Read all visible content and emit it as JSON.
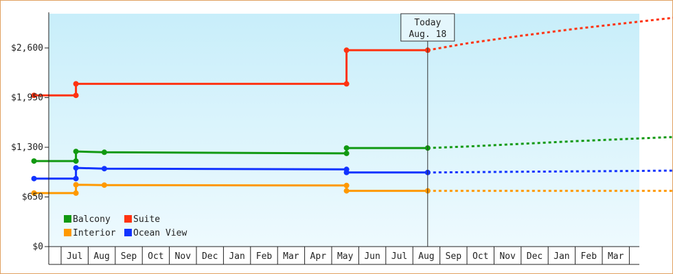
{
  "chart_data": {
    "type": "line",
    "title": "",
    "xlabel": "",
    "ylabel": "",
    "ylim": [
      0,
      3050
    ],
    "yticks": [
      0,
      650,
      1300,
      1950,
      2600
    ],
    "ytick_labels": [
      "$0",
      "$650",
      "$1,300",
      "$1,950",
      "$2,600"
    ],
    "month_labels": [
      "Jul",
      "Aug",
      "Sep",
      "Oct",
      "Nov",
      "Dec",
      "Jan",
      "Feb",
      "Mar",
      "Apr",
      "May",
      "Jun",
      "Jul",
      "Aug",
      "Sep",
      "Oct",
      "Nov",
      "Dec",
      "Jan",
      "Feb",
      "Mar"
    ],
    "x_unit": "months since start of Jun (first year)",
    "today_x": 14.55,
    "today_label": [
      "Today",
      "Aug. 18"
    ],
    "grid": false,
    "legend_position": "bottom-left",
    "series": [
      {
        "name": "Balcony",
        "color": "#119911",
        "points": [
          [
            0.0,
            1120
          ],
          [
            1.55,
            1120
          ],
          [
            1.55,
            1245
          ],
          [
            2.6,
            1235
          ],
          [
            11.55,
            1220
          ],
          [
            11.55,
            1290
          ],
          [
            14.55,
            1290
          ]
        ],
        "projection": [
          [
            14.55,
            1290
          ],
          [
            16.0,
            1310
          ],
          [
            18.0,
            1345
          ],
          [
            20.0,
            1380
          ],
          [
            22.0,
            1410
          ],
          [
            24.0,
            1440
          ],
          [
            25.3,
            1460
          ]
        ]
      },
      {
        "name": "Suite",
        "color": "#ff3311",
        "points": [
          [
            0.0,
            1980
          ],
          [
            1.55,
            1980
          ],
          [
            1.55,
            2130
          ],
          [
            11.55,
            2130
          ],
          [
            11.55,
            2570
          ],
          [
            14.55,
            2570
          ]
        ],
        "projection": [
          [
            14.55,
            2570
          ],
          [
            16.0,
            2660
          ],
          [
            18.0,
            2760
          ],
          [
            20.0,
            2850
          ],
          [
            22.0,
            2930
          ],
          [
            24.0,
            3010
          ],
          [
            25.3,
            3060
          ]
        ]
      },
      {
        "name": "Interior",
        "color": "#ff9900",
        "points": [
          [
            0.0,
            700
          ],
          [
            1.55,
            700
          ],
          [
            1.55,
            810
          ],
          [
            2.6,
            805
          ],
          [
            11.55,
            800
          ],
          [
            11.55,
            730
          ],
          [
            14.55,
            730
          ]
        ],
        "projection": [
          [
            14.55,
            730
          ],
          [
            25.3,
            730
          ]
        ]
      },
      {
        "name": "Ocean View",
        "color": "#1133ff",
        "points": [
          [
            0.0,
            890
          ],
          [
            1.55,
            890
          ],
          [
            1.55,
            1030
          ],
          [
            2.6,
            1020
          ],
          [
            11.55,
            1010
          ],
          [
            11.55,
            970
          ],
          [
            14.55,
            970
          ]
        ],
        "projection": [
          [
            14.55,
            970
          ],
          [
            18.0,
            980
          ],
          [
            22.0,
            990
          ],
          [
            25.3,
            1000
          ]
        ]
      }
    ]
  }
}
